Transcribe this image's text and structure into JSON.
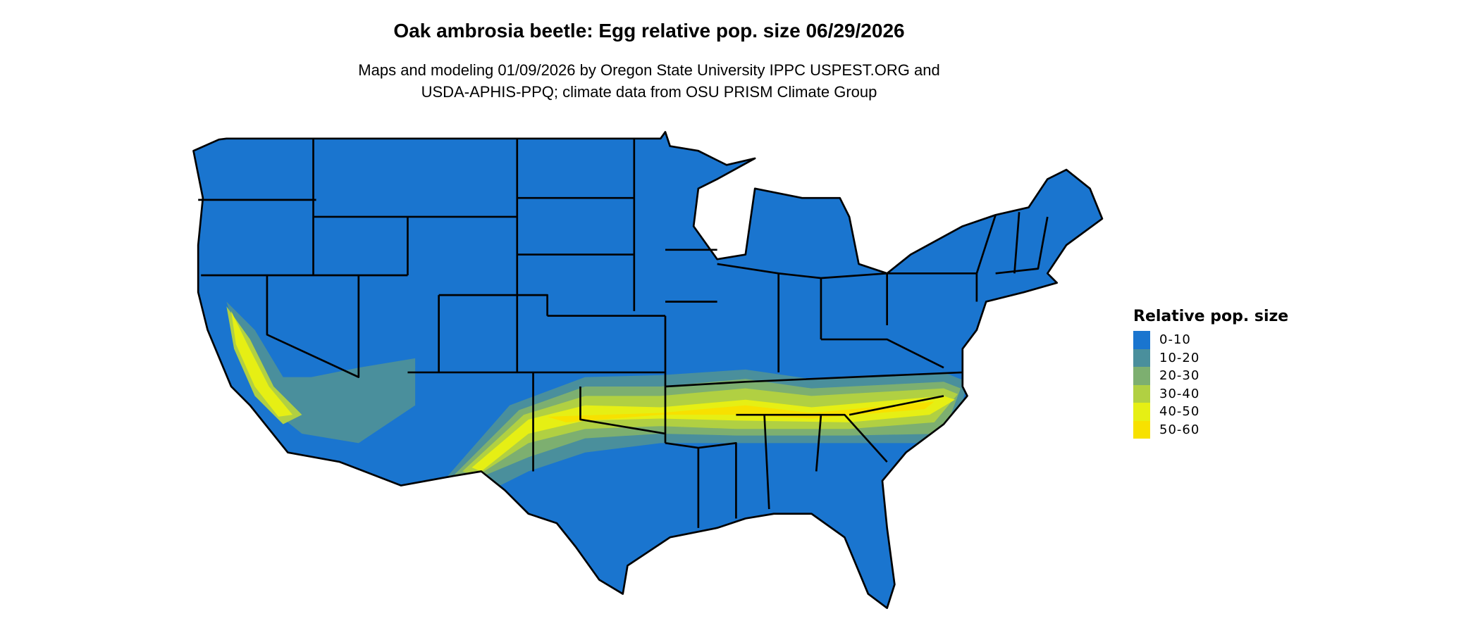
{
  "title": "Oak ambrosia beetle: Egg relative pop. size 06/29/2026",
  "subtitle_line1": "Maps and modeling 01/09/2026 by Oregon State University IPPC USPEST.ORG and",
  "subtitle_line2": "USDA-APHIS-PPQ; climate data from OSU PRISM Climate Group",
  "legend": {
    "title": "Relative pop. size",
    "items": [
      {
        "label": "0-10",
        "color": "#1a75cf"
      },
      {
        "label": "10-20",
        "color": "#4a8f9c"
      },
      {
        "label": "20-30",
        "color": "#7daf70"
      },
      {
        "label": "30-40",
        "color": "#b1d042"
      },
      {
        "label": "40-50",
        "color": "#e6ef14"
      },
      {
        "label": "50-60",
        "color": "#f7e100"
      }
    ]
  }
}
